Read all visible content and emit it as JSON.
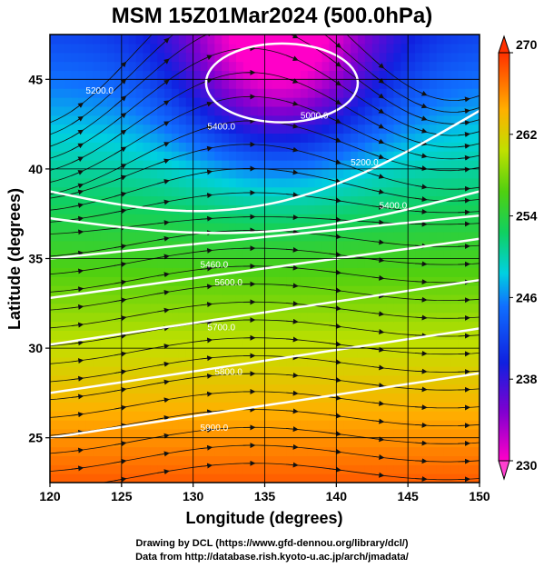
{
  "chart_data": {
    "type": "heatmap",
    "title": "MSM 15Z01Mar2024 (500.0hPa)",
    "xlabel": "Longitude (degrees)",
    "ylabel": "Latitude  (degrees)",
    "xlim": [
      120,
      150
    ],
    "ylim": [
      22.5,
      47.5
    ],
    "x_ticks": [
      "120",
      "125",
      "130",
      "135",
      "140",
      "145",
      "150"
    ],
    "y_ticks": [
      "25",
      "30",
      "35",
      "40",
      "45"
    ],
    "colorbar": {
      "range": [
        230,
        270
      ],
      "ticks": [
        "230",
        "238",
        "246",
        "254",
        "262",
        "270"
      ],
      "position": "right"
    },
    "grid": true,
    "temperature_field": {
      "description_units": "K",
      "low_center": {
        "lon": 136,
        "lat": 46.5,
        "value": 230
      },
      "southern_value": 268
    },
    "height_contours": [
      {
        "label": "5400.0",
        "lon": 131,
        "lat": 42.2
      },
      {
        "label": "5200.0",
        "lon": 122.5,
        "lat": 44.2
      },
      {
        "label": "5000.0",
        "lon": 137.5,
        "lat": 42.8
      },
      {
        "label": "5200.0",
        "lon": 141,
        "lat": 40.2
      },
      {
        "label": "5400.0",
        "lon": 143,
        "lat": 37.8
      },
      {
        "label": "5460.0",
        "lon": 130.5,
        "lat": 34.5
      },
      {
        "label": "5600.0",
        "lon": 131.5,
        "lat": 33.5
      },
      {
        "label": "5700.0",
        "lon": 131,
        "lat": 31
      },
      {
        "label": "5800.0",
        "lon": 131.5,
        "lat": 28.5
      },
      {
        "label": "5900.0",
        "lon": 130.5,
        "lat": 25.4
      }
    ],
    "wind": "streamlines west-to-east"
  },
  "credits": {
    "line1": "Drawing by DCL (https://www.gfd-dennou.org/library/dcl/)",
    "line2": "Data from http://database.rish.kyoto-u.ac.jp/arch/jmadata/"
  }
}
